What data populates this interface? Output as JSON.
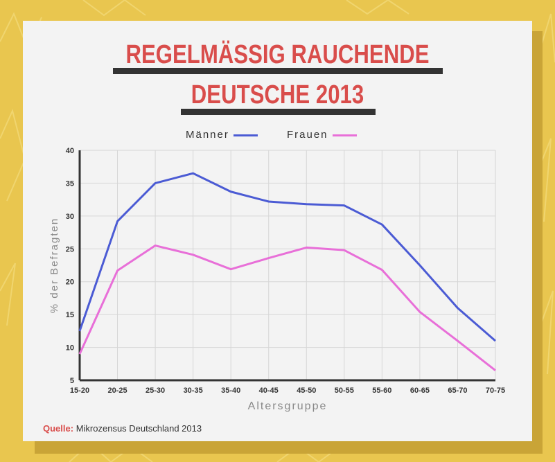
{
  "title_line1": "REGELMÄSSIG RAUCHENDE",
  "title_line2": "DEUTSCHE 2013",
  "source_label": "Quelle:",
  "source_text": "Mikrozensus Deutschland 2013",
  "colors": {
    "background": "#e9c64f",
    "title": "#d94d4b",
    "maenner": "#4b5bd4",
    "frauen": "#e86fd8"
  },
  "chart_data": {
    "type": "line",
    "title": "REGELMÄSSIG RAUCHENDE DEUTSCHE 2013",
    "xlabel": "Altersgruppe",
    "ylabel": "% der Befragten",
    "categories": [
      "15-20",
      "20-25",
      "25-30",
      "30-35",
      "35-40",
      "40-45",
      "45-50",
      "50-55",
      "55-60",
      "60-65",
      "65-70",
      "70-75"
    ],
    "yticks": [
      5,
      10,
      15,
      20,
      25,
      30,
      35,
      40
    ],
    "ylim": [
      5,
      40
    ],
    "grid": true,
    "legend_position": "top-center",
    "series": [
      {
        "name": "Männer",
        "color": "#4b5bd4",
        "values": [
          12.5,
          29.2,
          35.0,
          36.5,
          33.7,
          32.2,
          31.8,
          31.6,
          28.7,
          22.5,
          16.0,
          11.0
        ]
      },
      {
        "name": "Frauen",
        "color": "#e86fd8",
        "values": [
          9.0,
          21.7,
          25.5,
          24.1,
          21.9,
          23.6,
          25.2,
          24.8,
          21.8,
          15.4,
          11.0,
          6.5
        ]
      }
    ]
  }
}
